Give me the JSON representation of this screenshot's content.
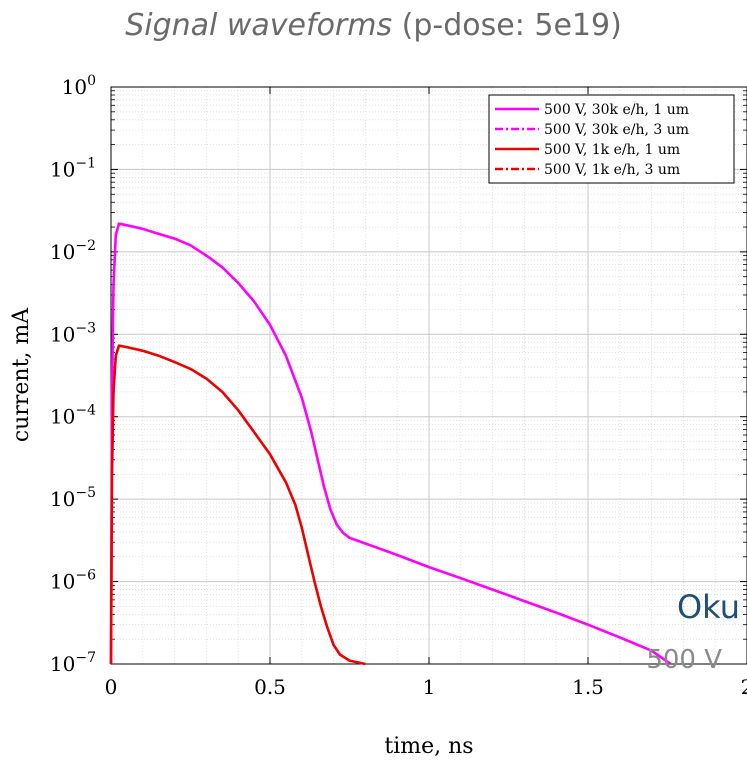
{
  "title": {
    "main": "Signal waveforms",
    "sub": "(p-dose: 5e19)"
  },
  "colors": {
    "magenta": "#ff00ff",
    "red": "#ee0000",
    "title_gray": "#6a6a6a",
    "oku_blue": "#1f4e79",
    "voltage_gray": "#8a8a8a"
  },
  "annotations": {
    "brand": "Oku",
    "voltage": "500 V"
  },
  "chart_data": {
    "type": "line",
    "xlabel": "time, ns",
    "ylabel": "current, mA",
    "xlim": [
      0,
      2
    ],
    "ylim": [
      1e-07,
      1
    ],
    "yscale": "log",
    "grid": true,
    "legend_position": "top-right",
    "x_ticks": [
      {
        "value": 0,
        "label": "0"
      },
      {
        "value": 0.5,
        "label": "0.5"
      },
      {
        "value": 1,
        "label": "1"
      },
      {
        "value": 1.5,
        "label": "1.5"
      },
      {
        "value": 2,
        "label": "2"
      }
    ],
    "y_ticks": [
      {
        "value": 1,
        "exp": "0"
      },
      {
        "value": 0.1,
        "exp": "−1"
      },
      {
        "value": 0.01,
        "exp": "−2"
      },
      {
        "value": 0.001,
        "exp": "−3"
      },
      {
        "value": 0.0001,
        "exp": "−4"
      },
      {
        "value": 1e-05,
        "exp": "−5"
      },
      {
        "value": 1e-06,
        "exp": "−6"
      },
      {
        "value": 1e-07,
        "exp": "−7"
      }
    ],
    "series": [
      {
        "name": "500 V, 30k e/h, 1 um",
        "color": "#ff00ff",
        "dash": "solid",
        "x": [
          0,
          0.003,
          0.008,
          0.015,
          0.025,
          0.05,
          0.1,
          0.15,
          0.2,
          0.25,
          0.3,
          0.35,
          0.4,
          0.45,
          0.5,
          0.55,
          0.6,
          0.63,
          0.65,
          0.67,
          0.69,
          0.71,
          0.73,
          0.75,
          0.8,
          0.9,
          1.0,
          1.1,
          1.2,
          1.3,
          1.4,
          1.5,
          1.6,
          1.7,
          1.76
        ],
        "y": [
          1e-07,
          0.0002,
          0.004,
          0.016,
          0.022,
          0.021,
          0.019,
          0.0165,
          0.0145,
          0.012,
          0.009,
          0.0065,
          0.0042,
          0.0025,
          0.0013,
          0.00055,
          0.00017,
          6.5e-05,
          3e-05,
          1.4e-05,
          7.5e-06,
          4.9e-06,
          3.9e-06,
          3.4e-06,
          2.9e-06,
          2.1e-06,
          1.5e-06,
          1.1e-06,
          8e-07,
          5.8e-07,
          4.2e-07,
          3e-07,
          2.1e-07,
          1.45e-07,
          1e-07
        ]
      },
      {
        "name": "500 V, 30k e/h, 3 um",
        "color": "#ff00ff",
        "dash": "dashdot",
        "x": [],
        "y": []
      },
      {
        "name": "500 V, 1k e/h, 1 um",
        "color": "#ee0000",
        "dash": "solid",
        "x": [
          0,
          0.003,
          0.008,
          0.015,
          0.025,
          0.05,
          0.1,
          0.15,
          0.2,
          0.25,
          0.3,
          0.35,
          0.4,
          0.45,
          0.5,
          0.55,
          0.58,
          0.6,
          0.62,
          0.64,
          0.66,
          0.68,
          0.7,
          0.72,
          0.75,
          0.8
        ],
        "y": [
          1e-07,
          2e-05,
          0.0002,
          0.00055,
          0.00073,
          0.0007,
          0.00063,
          0.00055,
          0.00046,
          0.00038,
          0.00029,
          0.0002,
          0.00012,
          6.5e-05,
          3.5e-05,
          1.6e-05,
          8.5e-06,
          4.5e-06,
          2.1e-06,
          1e-06,
          5e-07,
          2.8e-07,
          1.7e-07,
          1.3e-07,
          1.1e-07,
          1e-07
        ]
      },
      {
        "name": "500 V, 1k e/h, 3 um",
        "color": "#ee0000",
        "dash": "dashdot",
        "x": [],
        "y": []
      }
    ]
  }
}
